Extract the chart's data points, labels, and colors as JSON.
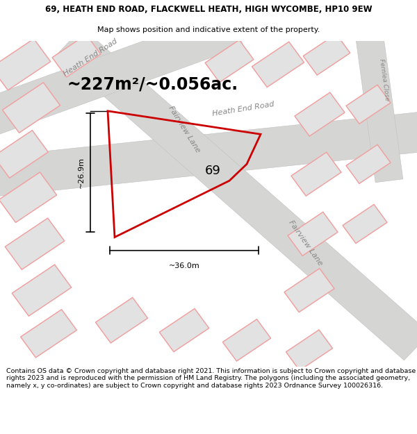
{
  "title_line1": "69, HEATH END ROAD, FLACKWELL HEATH, HIGH WYCOMBE, HP10 9EW",
  "title_line2": "Map shows position and indicative extent of the property.",
  "area_text": "~227m²/~0.056ac.",
  "label_69": "69",
  "dim_vertical": "~26.9m",
  "dim_horizontal": "~36.0m",
  "road_label_heath_end": "Heath End Road",
  "road_label_fairview_lane_diag": "Fairview Lane",
  "road_label_fairview_lane_bottom": "Fairview Lane",
  "road_label_heath_end_road_top": "Heath End Road",
  "road_label_fairview_lane_mid": "Fairview Lane",
  "road_label_fernlea": "Fernlea Close",
  "footer_text": "Contains OS data © Crown copyright and database right 2021. This information is subject to Crown copyright and database rights 2023 and is reproduced with the permission of HM Land Registry. The polygons (including the associated geometry, namely x, y co-ordinates) are subject to Crown copyright and database rights 2023 Ordnance Survey 100026316.",
  "bg_color": "#ffffff",
  "map_bg": "#efefed",
  "road_color": "#d0d0d0",
  "building_fill": "#e2e2e2",
  "building_edge": "#c8c8c8",
  "pink_outline": "#f4a0a0",
  "red_plot_color": "#cc0000",
  "title_fontsize": 8.5,
  "subtitle_fontsize": 8.0,
  "area_fontsize": 17,
  "footer_fontsize": 6.8,
  "road_label_fontsize": 8.0,
  "dim_fontsize": 8.0
}
